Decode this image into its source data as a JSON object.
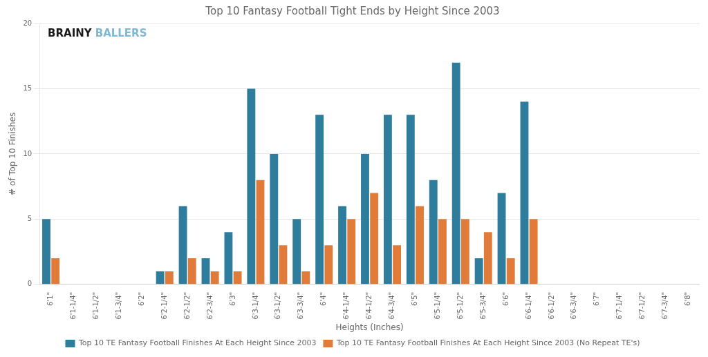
{
  "chart_data": {
    "type": "bar",
    "title": "Top 10 Fantasy Football Tight Ends by Height Since 2003",
    "xlabel": "Heights (Inches)",
    "ylabel": "# of Top 10 Finishes",
    "categories": [
      "6'1\"",
      "6'1-1/4\"",
      "6'1-1/2\"",
      "6'1-3/4\"",
      "6'2\"",
      "6'2-1/4\"",
      "6'2-1/2\"",
      "6'2-3/4\"",
      "6'3\"",
      "6'3-1/4\"",
      "6'3-1/2\"",
      "6'3-3/4\"",
      "6'4\"",
      "6'4-1/4\"",
      "6'4-1/2\"",
      "6'4-3/4\"",
      "6'5\"",
      "6'5-1/4\"",
      "6'5-1/2\"",
      "6'5-3/4\"",
      "6'6\"",
      "6'6-1/4\"",
      "6'6-1/2\"",
      "6'6-3/4\"",
      "6'7\"",
      "6'7-1/4\"",
      "6'7-1/2\"",
      "6'7-3/4\"",
      "6'8\""
    ],
    "series": [
      {
        "name": "Top 10 TE Fantasy Football Finishes At Each Height Since 2003",
        "color": "#2E7D9C",
        "values": [
          5,
          0,
          0,
          0,
          0,
          1,
          6,
          2,
          4,
          15,
          10,
          5,
          13,
          6,
          10,
          13,
          13,
          8,
          17,
          2,
          7,
          14,
          0,
          0,
          0,
          0,
          0,
          0,
          0
        ]
      },
      {
        "name": "Top 10 TE Fantasy Football Finishes At Each Height Since 2003 (No Repeat TE's)",
        "color": "#E07B39",
        "values": [
          2,
          0,
          0,
          0,
          0,
          1,
          2,
          1,
          1,
          8,
          3,
          1,
          3,
          5,
          7,
          3,
          6,
          5,
          5,
          4,
          2,
          5,
          0,
          0,
          0,
          0,
          0,
          0,
          0
        ]
      }
    ],
    "ylim": [
      0,
      20
    ],
    "yticks": [
      0,
      5,
      10,
      15,
      20
    ],
    "grid": true,
    "legend": "bottom",
    "annotations": [
      {
        "text": "BRAINY",
        "color": "#1a1a1a"
      },
      {
        "text": "BALLERS",
        "color": "#7eb8d4"
      }
    ]
  }
}
